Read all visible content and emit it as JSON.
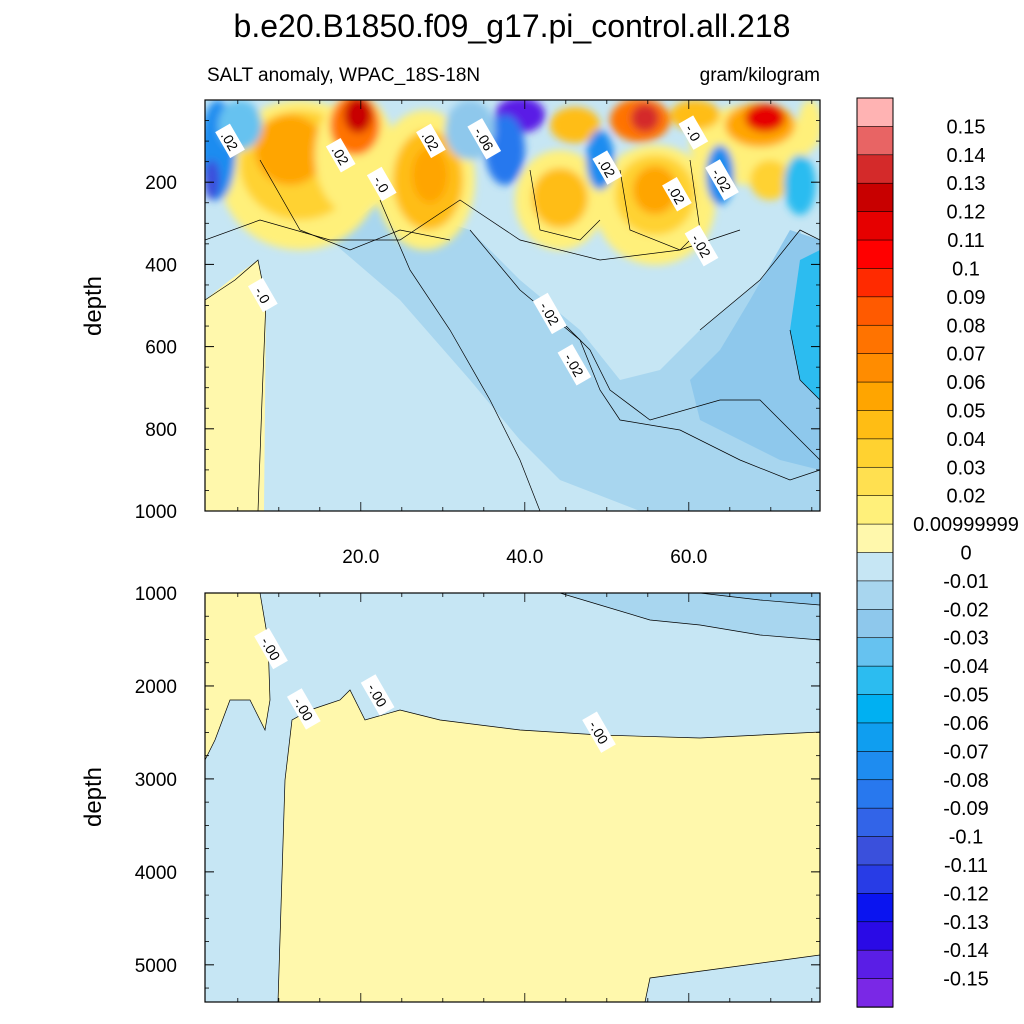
{
  "chart_data": {
    "type": "heatmap",
    "title": "b.e20.B1850.f09_g17.pi_control.all.218",
    "left_string": "SALT anomaly, WPAC_18S-18N",
    "right_string": "gram/kilogram",
    "ylabel": "depth",
    "x_ticks": [
      "20.0",
      "40.0",
      "60.0"
    ],
    "x_tick_values": [
      20,
      40,
      60
    ],
    "xlim": [
      1,
      76
    ],
    "panels": [
      {
        "name": "upper",
        "ylim": [
          0,
          1000
        ],
        "y_reversed": true,
        "y_ticks": [
          "200",
          "400",
          "600",
          "800",
          "1000"
        ],
        "y_tick_values": [
          200,
          400,
          600,
          800,
          1000
        ],
        "contour_labels": [
          {
            "text": ".02",
            "x": 4,
            "y": 100
          },
          {
            "text": ".02",
            "x": 17.5,
            "y": 135
          },
          {
            "text": ".02",
            "x": 28.5,
            "y": 100
          },
          {
            "text": "-.06",
            "x": 35,
            "y": 95
          },
          {
            "text": "-.0",
            "x": 22.5,
            "y": 205
          },
          {
            "text": ".02",
            "x": 50,
            "y": 165
          },
          {
            "text": ".02",
            "x": 58.5,
            "y": 230
          },
          {
            "text": "-.02",
            "x": 64,
            "y": 195
          },
          {
            "text": "-.0",
            "x": 60.5,
            "y": 80
          },
          {
            "text": "-.02",
            "x": 61.5,
            "y": 355
          },
          {
            "text": "-.0",
            "x": 8,
            "y": 475
          },
          {
            "text": "-.02",
            "x": 43,
            "y": 520
          },
          {
            "text": "-.02",
            "x": 46,
            "y": 645
          }
        ]
      },
      {
        "name": "lower",
        "ylim": [
          1000,
          5400
        ],
        "y_reversed": true,
        "y_ticks": [
          "1000",
          "2000",
          "3000",
          "4000",
          "5000"
        ],
        "y_tick_values": [
          1000,
          2000,
          3000,
          4000,
          5000
        ],
        "contour_labels": [
          {
            "text": "-.00",
            "x": 9,
            "y": 1600
          },
          {
            "text": "-.00",
            "x": 13,
            "y": 2250
          },
          {
            "text": "-.00",
            "x": 22,
            "y": 2100
          },
          {
            "text": "-.00",
            "x": 49,
            "y": 2500
          }
        ]
      }
    ],
    "colorbar": {
      "labels": [
        "0.15",
        "0.14",
        "0.13",
        "0.12",
        "0.11",
        "0.1",
        "0.09",
        "0.08",
        "0.07",
        "0.06",
        "0.05",
        "0.04",
        "0.03",
        "0.02",
        "0.00999999",
        "0",
        "-0.01",
        "-0.02",
        "-0.03",
        "-0.04",
        "-0.05",
        "-0.06",
        "-0.07",
        "-0.08",
        "-0.09",
        "-0.1",
        "-0.11",
        "-0.12",
        "-0.13",
        "-0.14",
        "-0.15"
      ],
      "colors": [
        "#ffb3b3",
        "#e86464",
        "#d42a2a",
        "#c80000",
        "#e60000",
        "#ff0000",
        "#ff2a00",
        "#ff5a00",
        "#ff7300",
        "#ff8c00",
        "#ffa500",
        "#ffbd14",
        "#ffd230",
        "#ffe050",
        "#fff07a",
        "#fff8ac",
        "#c6e6f4",
        "#a8d6ef",
        "#8ec8ec",
        "#66c2f0",
        "#2cbcf0",
        "#00b0f2",
        "#0f9ef0",
        "#1e8cf0",
        "#2878ee",
        "#3264e8",
        "#3a50dc",
        "#283ce6",
        "#0a14f0",
        "#2a0ae6",
        "#5a1ee6",
        "#7a28e6"
      ]
    }
  }
}
